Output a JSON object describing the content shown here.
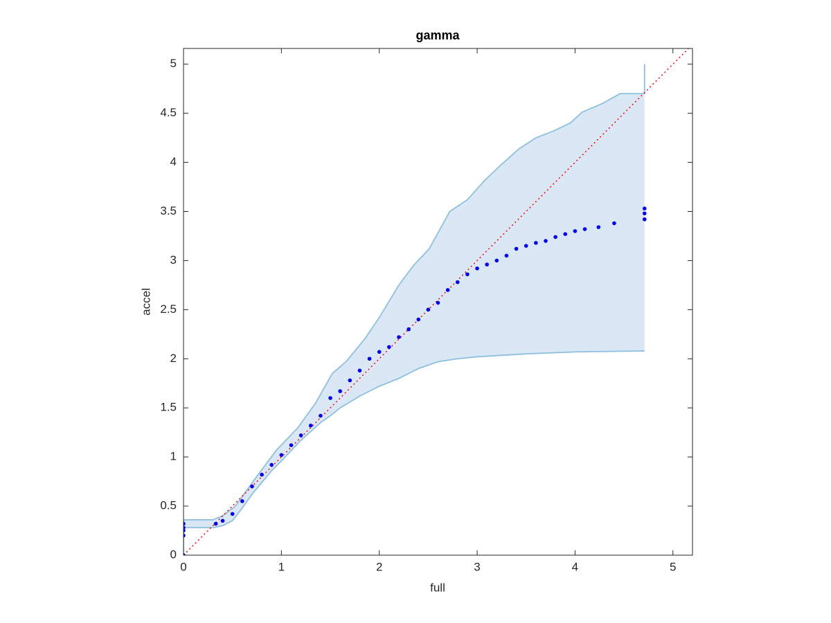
{
  "chart_data": {
    "type": "scatter",
    "title": "gamma",
    "x_label": "full",
    "y_label": "accel",
    "xlim": [
      0,
      5.2
    ],
    "ylim": [
      0,
      5.16
    ],
    "xticks": [
      0,
      1,
      2,
      3,
      4,
      5
    ],
    "yticks": [
      0,
      0.5,
      1,
      1.5,
      2,
      2.5,
      3,
      3.5,
      4,
      4.5,
      5
    ],
    "band": {
      "color": "#8dbfdf",
      "fill_color": "#d9e8f4",
      "upper": {
        "x": [
          0,
          0,
          0.3,
          0.4,
          0.53,
          0.74,
          0.95,
          1.17,
          1.35,
          1.52,
          1.66,
          1.85,
          2.0,
          2.2,
          2.35,
          2.51,
          2.72,
          2.9,
          3.08,
          3.25,
          3.43,
          3.6,
          3.78,
          3.95,
          4.07,
          4.28,
          4.46,
          4.71,
          4.71
        ],
        "y": [
          0,
          0.36,
          0.36,
          0.4,
          0.5,
          0.79,
          1.07,
          1.3,
          1.55,
          1.85,
          1.97,
          2.2,
          2.42,
          2.75,
          2.95,
          3.12,
          3.5,
          3.62,
          3.82,
          3.98,
          4.14,
          4.25,
          4.32,
          4.4,
          4.51,
          4.6,
          4.7,
          4.7,
          5.0
        ]
      },
      "lower": {
        "x": [
          0,
          0.3,
          0.4,
          0.5,
          0.6,
          0.7,
          0.8,
          0.9,
          1.0,
          1.2,
          1.4,
          1.5,
          1.6,
          1.8,
          2.0,
          2.2,
          2.4,
          2.6,
          2.8,
          3.0,
          3.5,
          4.0,
          4.71
        ],
        "y": [
          0.28,
          0.28,
          0.3,
          0.35,
          0.48,
          0.62,
          0.74,
          0.86,
          0.96,
          1.17,
          1.35,
          1.42,
          1.5,
          1.62,
          1.72,
          1.8,
          1.9,
          1.97,
          2.0,
          2.02,
          2.05,
          2.07,
          2.08
        ]
      }
    },
    "reference_line": {
      "color": "#ff0000",
      "style": "dotted",
      "x": [
        0,
        5.2
      ],
      "y": [
        0,
        5.2
      ]
    },
    "series": [
      {
        "color": "#0000ff",
        "x": [
          0,
          0,
          0,
          0,
          0,
          0.33,
          0.4,
          0.5,
          0.6,
          0.7,
          0.8,
          0.9,
          1.0,
          1.1,
          1.2,
          1.3,
          1.4,
          1.5,
          1.6,
          1.7,
          1.8,
          1.9,
          2.0,
          2.1,
          2.2,
          2.3,
          2.4,
          2.5,
          2.6,
          2.7,
          2.8,
          2.9,
          3.0,
          3.1,
          3.2,
          3.3,
          3.4,
          3.5,
          3.6,
          3.7,
          3.8,
          3.9,
          4.0,
          4.1,
          4.24,
          4.4,
          4.71,
          4.71,
          4.71
        ],
        "values": [
          0,
          0.2,
          0.25,
          0.28,
          0.32,
          0.32,
          0.35,
          0.42,
          0.55,
          0.7,
          0.82,
          0.92,
          1.02,
          1.12,
          1.22,
          1.32,
          1.42,
          1.6,
          1.67,
          1.78,
          1.88,
          2.0,
          2.07,
          2.12,
          2.22,
          2.3,
          2.4,
          2.5,
          2.57,
          2.7,
          2.78,
          2.86,
          2.92,
          2.96,
          3.0,
          3.05,
          3.12,
          3.15,
          3.18,
          3.2,
          3.24,
          3.27,
          3.3,
          3.32,
          3.34,
          3.38,
          3.42,
          3.48,
          3.53
        ]
      }
    ]
  }
}
